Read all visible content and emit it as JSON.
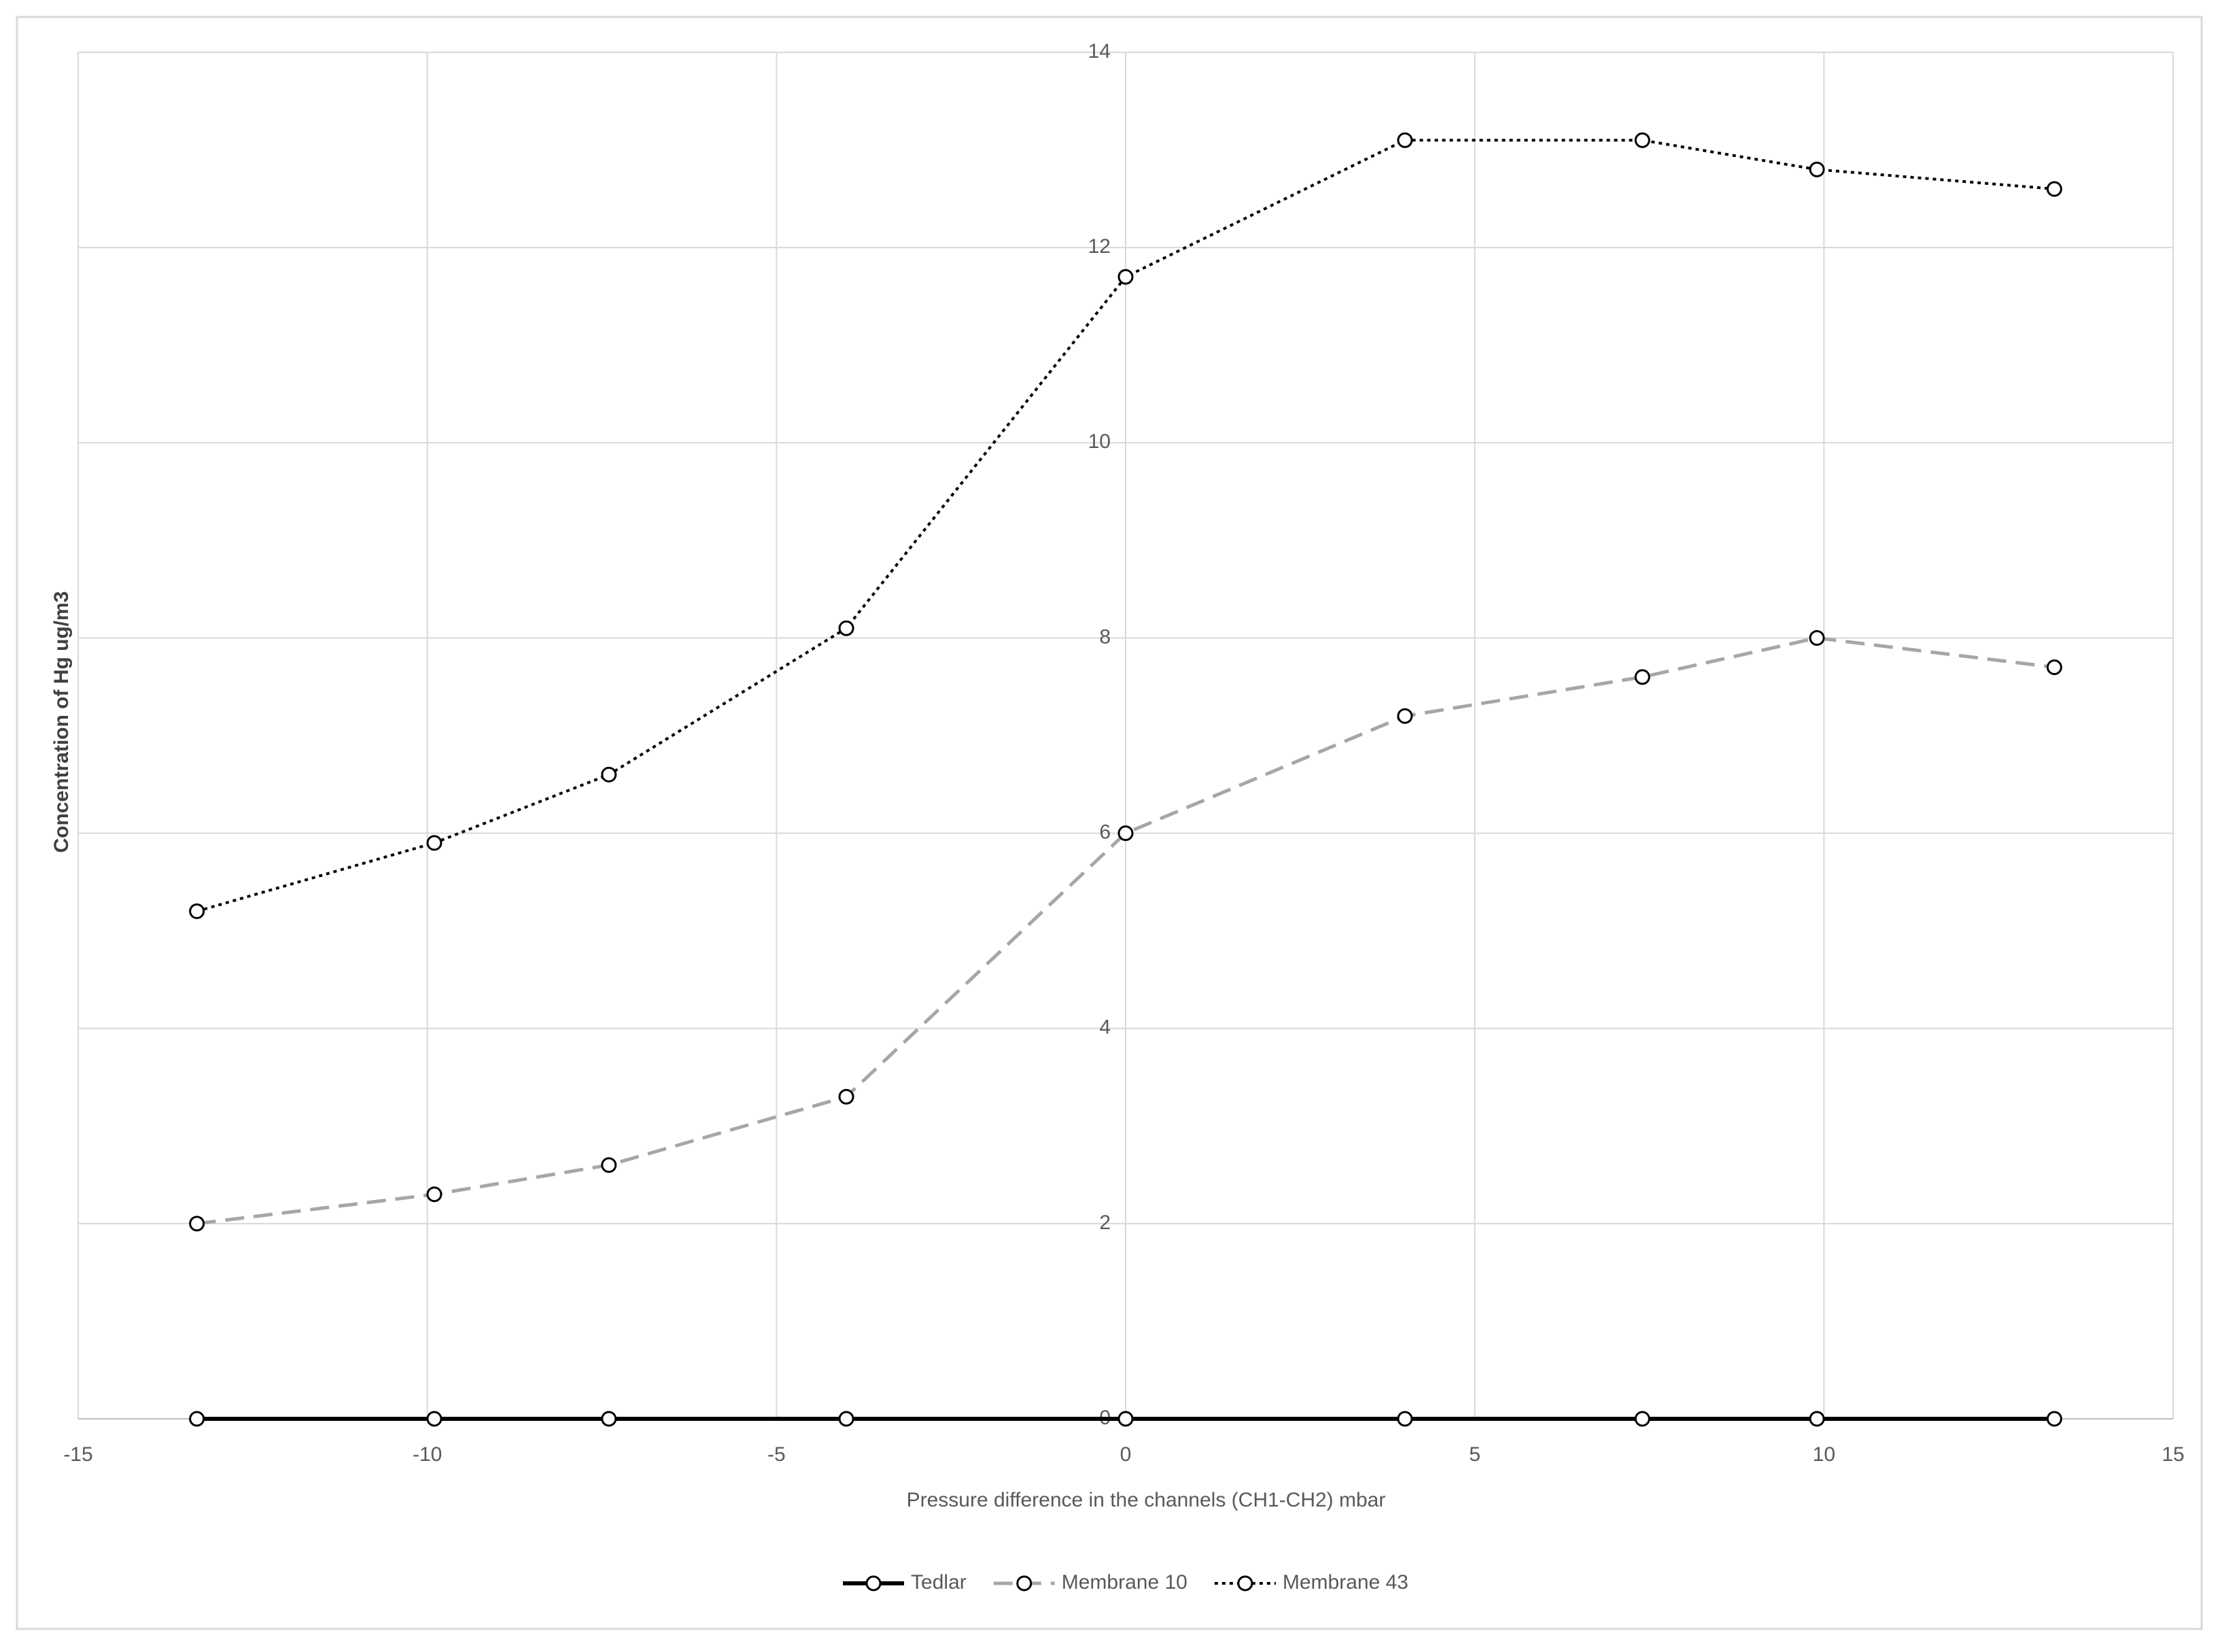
{
  "chart_data": {
    "type": "line",
    "x_label": "Pressure difference in the channels (CH1-CH2) mbar",
    "y_label": "Concentration of  Hg ug/m3",
    "x": [
      -13.3,
      -9.9,
      -7.4,
      -4,
      0,
      4,
      7.4,
      9.9,
      13.3
    ],
    "series": [
      {
        "name": "Tedlar",
        "color": "#000000",
        "line_style": "solid",
        "values": [
          0,
          0,
          0,
          0,
          0,
          0,
          0,
          0,
          0
        ]
      },
      {
        "name": "Membrane 10",
        "color": "#a6a6a6",
        "line_style": "dashed",
        "values": [
          2.0,
          2.3,
          2.6,
          3.3,
          6.0,
          7.2,
          7.6,
          8.0,
          7.7
        ]
      },
      {
        "name": "Membrane 43",
        "color": "#000000",
        "line_style": "dotted",
        "values": [
          5.2,
          5.9,
          6.6,
          8.1,
          11.7,
          13.1,
          13.1,
          12.8,
          12.6
        ]
      }
    ],
    "xlim": [
      -15,
      15
    ],
    "xticks": [
      -15,
      -10,
      -5,
      0,
      5,
      10,
      15
    ],
    "ylim": [
      0,
      14
    ],
    "yticks": [
      0,
      2,
      4,
      6,
      8,
      10,
      12,
      14
    ],
    "grid": true,
    "legend": "bottom"
  }
}
